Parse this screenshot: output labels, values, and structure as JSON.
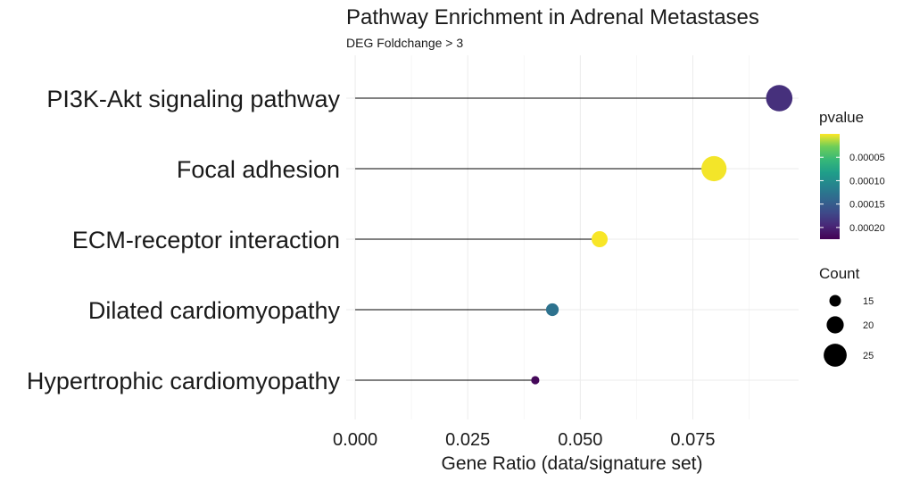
{
  "chart_data": {
    "type": "lollipop",
    "title": "Pathway Enrichment in Adrenal Metastases",
    "subtitle": "DEG Foldchange > 3",
    "xlabel": "Gene Ratio (data/signature set)",
    "ylabel": "",
    "xlim": [
      -0.002,
      0.0985
    ],
    "x_ticks": [
      0.0,
      0.025,
      0.05,
      0.075
    ],
    "x_tick_labels": [
      "0.000",
      "0.025",
      "0.050",
      "0.075"
    ],
    "categories": [
      "PI3K-Akt signaling pathway",
      "Focal adhesion",
      "ECM-receptor interaction",
      "Dilated cardiomyopathy",
      "Hypertrophic cardiomyopathy"
    ],
    "gene_ratio": [
      0.0942,
      0.0797,
      0.0543,
      0.0438,
      0.04
    ],
    "pvalue": [
      0.00019,
      2e-06,
      1e-06,
      0.00013,
      0.00022
    ],
    "count": [
      28,
      27,
      19,
      16,
      12
    ],
    "grid": true,
    "legends": {
      "color": {
        "title": "pvalue",
        "colormap": "viridis",
        "range": [
          0.0,
          0.000225
        ],
        "ticks": [
          5e-05,
          0.0001,
          0.00015,
          0.0002
        ],
        "tick_labels": [
          "0.00005",
          "0.00010",
          "0.00015",
          "0.00020"
        ],
        "placement": "right"
      },
      "size": {
        "title": "Count",
        "values": [
          15,
          20,
          25
        ],
        "labels": [
          "15",
          "20",
          "25"
        ],
        "placement": "right"
      }
    }
  }
}
